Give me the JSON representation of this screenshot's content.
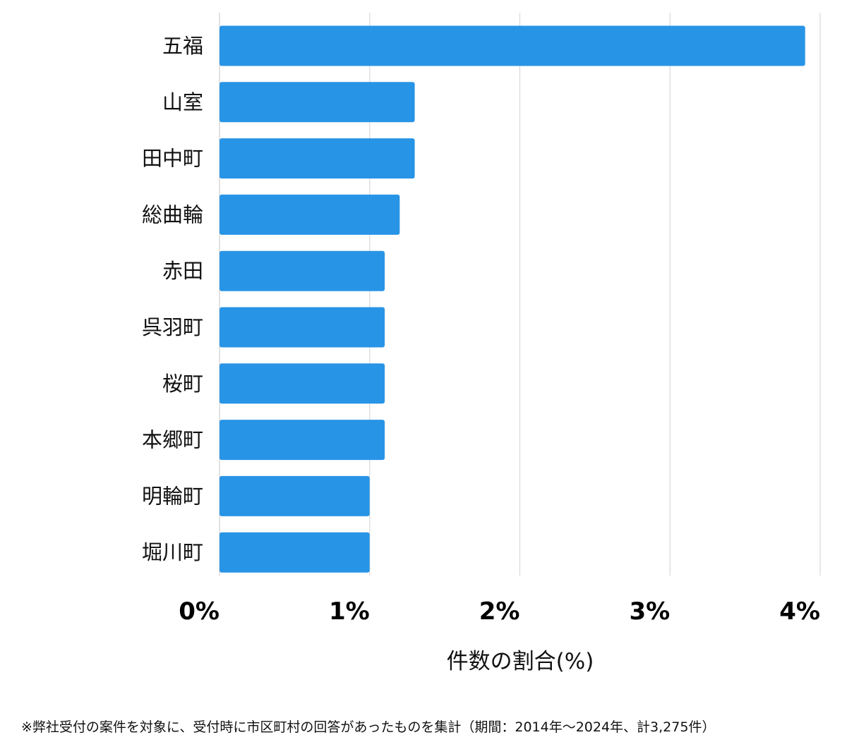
{
  "chart_data": {
    "type": "bar",
    "orientation": "horizontal",
    "categories": [
      "五福",
      "山室",
      "田中町",
      "総曲輪",
      "赤田",
      "呉羽町",
      "桜町",
      "本郷町",
      "明輪町",
      "堀川町"
    ],
    "values": [
      3.9,
      1.3,
      1.3,
      1.2,
      1.1,
      1.1,
      1.1,
      1.1,
      1.0,
      1.0
    ],
    "xlim": [
      0,
      4
    ],
    "ticks": [
      0,
      1,
      2,
      3,
      4
    ],
    "tick_labels": [
      "0%",
      "1%",
      "2%",
      "3%",
      "4%"
    ],
    "xlabel": "件数の割合(%)",
    "ylabel": "",
    "grid": true,
    "bar_color": "#2894e6",
    "grid_color": "#d9d9d9"
  },
  "footnote": "※弊社受付の案件を対象に、受付時に市区町村の回答があったものを集計（期間：2014年〜2024年、計3,275件）"
}
